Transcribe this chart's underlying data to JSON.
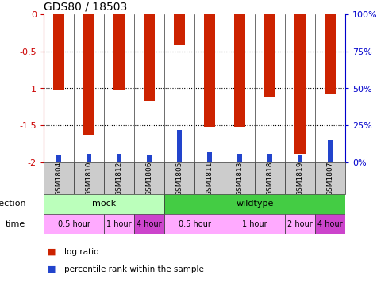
{
  "title": "GDS80 / 18503",
  "samples": [
    "GSM1804",
    "GSM1810",
    "GSM1812",
    "GSM1806",
    "GSM1805",
    "GSM1811",
    "GSM1813",
    "GSM1818",
    "GSM1819",
    "GSM1807"
  ],
  "log_ratio": [
    -1.03,
    -1.63,
    -1.02,
    -1.18,
    -0.42,
    -1.52,
    -1.52,
    -1.12,
    -1.88,
    -1.08
  ],
  "percentile": [
    5,
    6,
    6,
    5,
    22,
    7,
    6,
    6,
    5,
    15
  ],
  "bar_color": "#cc2200",
  "blue_color": "#2244cc",
  "ylim_left": [
    -2.0,
    0.0
  ],
  "ylim_right": [
    0,
    100
  ],
  "yticks_left": [
    0.0,
    -0.5,
    -1.0,
    -1.5,
    -2.0
  ],
  "yticks_right": [
    0,
    25,
    50,
    75,
    100
  ],
  "infection_groups": [
    {
      "label": "mock",
      "start": 0,
      "end": 4,
      "color": "#bbffbb"
    },
    {
      "label": "wildtype",
      "start": 4,
      "end": 10,
      "color": "#44cc44"
    }
  ],
  "time_groups": [
    {
      "label": "0.5 hour",
      "start": 0,
      "end": 2,
      "color": "#ffaaff"
    },
    {
      "label": "1 hour",
      "start": 2,
      "end": 3,
      "color": "#ffaaff"
    },
    {
      "label": "4 hour",
      "start": 3,
      "end": 4,
      "color": "#cc44cc"
    },
    {
      "label": "0.5 hour",
      "start": 4,
      "end": 6,
      "color": "#ffaaff"
    },
    {
      "label": "1 hour",
      "start": 6,
      "end": 8,
      "color": "#ffaaff"
    },
    {
      "label": "2 hour",
      "start": 8,
      "end": 9,
      "color": "#ffaaff"
    },
    {
      "label": "4 hour",
      "start": 9,
      "end": 10,
      "color": "#cc44cc"
    }
  ],
  "infection_label": "infection",
  "time_label": "time",
  "legend_items": [
    {
      "label": "log ratio",
      "color": "#cc2200"
    },
    {
      "label": "percentile rank within the sample",
      "color": "#2244cc"
    }
  ],
  "left_axis_color": "#cc0000",
  "right_axis_color": "#0000cc",
  "bar_width": 0.35,
  "blue_bar_width": 0.18,
  "dotted_yticks": [
    -0.5,
    -1.0,
    -1.5
  ],
  "sample_bg_color": "#cccccc",
  "border_color": "#333333"
}
